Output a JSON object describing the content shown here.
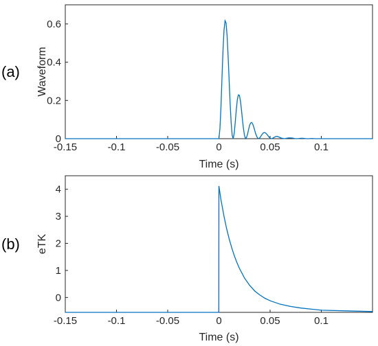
{
  "chart_data": [
    {
      "panel_label": "(a)",
      "type": "line",
      "xlabel": "Time (s)",
      "ylabel": "Waveform",
      "xlim": [
        -0.15,
        0.15
      ],
      "ylim": [
        0,
        0.7
      ],
      "xticks": [
        -0.15,
        -0.1,
        -0.05,
        0,
        0.05,
        0.1
      ],
      "xtick_labels": [
        "-0.15",
        "-0.1",
        "-0.05",
        "0",
        "0.05",
        "0.1"
      ],
      "yticks": [
        0,
        0.2,
        0.4,
        0.6
      ],
      "ytick_labels": [
        "0",
        "0.2",
        "0.4",
        "0.6"
      ],
      "grid": false,
      "line_color": "#0072BD",
      "series": [
        {
          "x": [
            -0.15,
            0.0,
            0.001,
            0.002,
            0.003,
            0.004,
            0.005,
            0.006,
            0.007,
            0.008,
            0.009,
            0.01,
            0.011,
            0.012,
            0.013,
            0.014,
            0.015,
            0.016,
            0.017,
            0.018,
            0.019,
            0.02,
            0.021,
            0.022,
            0.023,
            0.024,
            0.025,
            0.026,
            0.027,
            0.028,
            0.029,
            0.03,
            0.031,
            0.032,
            0.033,
            0.034,
            0.035,
            0.036,
            0.037,
            0.038,
            0.039,
            0.04,
            0.041,
            0.042,
            0.043,
            0.044,
            0.045,
            0.046,
            0.047,
            0.048,
            0.049,
            0.05,
            0.051,
            0.052,
            0.053,
            0.054,
            0.055,
            0.056,
            0.057,
            0.058,
            0.059,
            0.06,
            0.062,
            0.064,
            0.066,
            0.068,
            0.07,
            0.072,
            0.074,
            0.076,
            0.078,
            0.08,
            0.082,
            0.084,
            0.086,
            0.088,
            0.09,
            0.092,
            0.094,
            0.096,
            0.1,
            0.11,
            0.15
          ],
          "y": [
            0,
            0,
            0.052,
            0.162,
            0.315,
            0.461,
            0.567,
            0.617,
            0.605,
            0.538,
            0.432,
            0.306,
            0.181,
            0.081,
            0.017,
            0.0,
            0.03,
            0.088,
            0.152,
            0.204,
            0.229,
            0.227,
            0.199,
            0.153,
            0.1,
            0.052,
            0.017,
            0.0,
            0.007,
            0.024,
            0.048,
            0.07,
            0.082,
            0.085,
            0.077,
            0.062,
            0.043,
            0.025,
            0.011,
            0.002,
            0.001,
            0.005,
            0.013,
            0.021,
            0.028,
            0.032,
            0.032,
            0.028,
            0.022,
            0.015,
            0.008,
            0.003,
            0.0,
            0.001,
            0.004,
            0.007,
            0.01,
            0.012,
            0.012,
            0.01,
            0.008,
            0.005,
            0.002,
            0.0,
            0.002,
            0.004,
            0.004,
            0.003,
            0.001,
            0.0,
            0.001,
            0.002,
            0.002,
            0.001,
            0.0,
            0.0,
            0.001,
            0.001,
            0.0,
            0.0,
            0.0,
            0.0,
            0.0
          ]
        }
      ]
    },
    {
      "panel_label": "(b)",
      "type": "line",
      "xlabel": "Time (s)",
      "ylabel": "eTK",
      "xlim": [
        -0.15,
        0.15
      ],
      "ylim": [
        -0.55,
        4.5
      ],
      "xticks": [
        -0.15,
        -0.1,
        -0.05,
        0,
        0.05,
        0.1
      ],
      "xtick_labels": [
        "-0.15",
        "-0.1",
        "-0.05",
        "0",
        "0.05",
        "0.1"
      ],
      "yticks": [
        0,
        1,
        2,
        3,
        4
      ],
      "ytick_labels": [
        "0",
        "1",
        "2",
        "3",
        "4"
      ],
      "grid": false,
      "line_color": "#0072BD",
      "series": [
        {
          "x": [
            -0.15,
            -0.0001,
            0.0,
            0.002,
            0.005,
            0.0075,
            0.01,
            0.0125,
            0.015,
            0.0175,
            0.02,
            0.025,
            0.03,
            0.035,
            0.04,
            0.045,
            0.05,
            0.06,
            0.07,
            0.08,
            0.09,
            0.1,
            0.15
          ],
          "y": [
            -0.55,
            -0.55,
            4.12,
            3.62,
            3.0,
            2.55,
            2.17,
            1.84,
            1.55,
            1.3,
            1.08,
            0.72,
            0.45,
            0.24,
            0.09,
            -0.03,
            -0.12,
            -0.25,
            -0.33,
            -0.39,
            -0.43,
            -0.47,
            -0.52
          ]
        }
      ]
    }
  ]
}
